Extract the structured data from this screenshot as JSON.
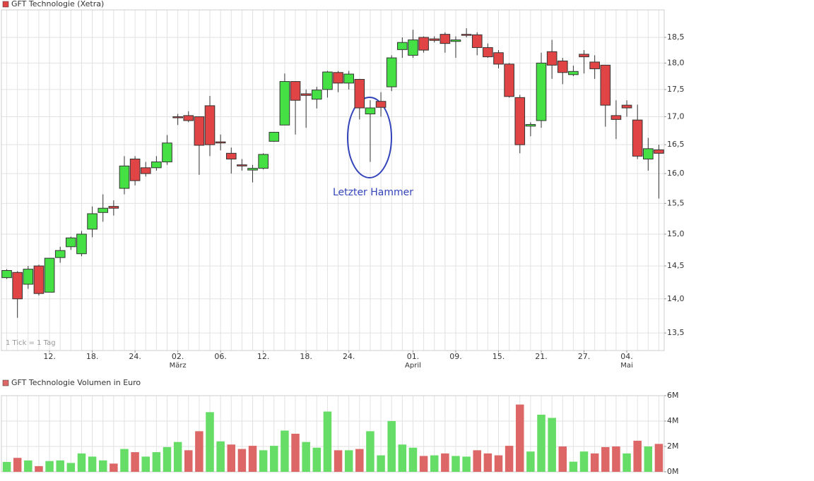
{
  "chart_data": [
    {
      "type": "candlestick",
      "legend": "GFT Technologie (Xetra)",
      "note": "1 Tick = 1 Tag",
      "annotation": "Letzter Hammer",
      "categories": [
        null,
        null,
        null,
        null,
        "12.",
        null,
        null,
        null,
        "18.",
        null,
        null,
        null,
        "24.",
        null,
        null,
        null,
        "02.",
        null,
        null,
        null,
        "06.",
        null,
        null,
        null,
        "12.",
        null,
        null,
        null,
        "18.",
        null,
        null,
        null,
        "24.",
        null,
        null,
        null,
        null,
        null,
        "01.",
        null,
        null,
        null,
        "09.",
        null,
        null,
        null,
        "15.",
        null,
        null,
        null,
        "21.",
        null,
        null,
        null,
        "27.",
        null,
        null,
        null,
        "04.",
        null,
        null,
        null
      ],
      "months": [
        null,
        null,
        null,
        null,
        null,
        null,
        null,
        null,
        null,
        null,
        null,
        null,
        null,
        null,
        null,
        null,
        "März",
        null,
        null,
        null,
        null,
        null,
        null,
        null,
        null,
        null,
        null,
        null,
        null,
        null,
        null,
        null,
        null,
        null,
        null,
        null,
        null,
        null,
        "April",
        null,
        null,
        null,
        null,
        null,
        null,
        null,
        null,
        null,
        null,
        null,
        null,
        null,
        null,
        null,
        null,
        null,
        null,
        null,
        "Mai",
        null,
        null,
        null
      ],
      "open": [
        14.32,
        14.4,
        14.22,
        14.5,
        14.1,
        14.63,
        14.8,
        14.69,
        15.08,
        15.35,
        15.45,
        15.75,
        16.25,
        16.1,
        16.1,
        16.2,
        17.0,
        17.02,
        17.0,
        17.2,
        16.55,
        16.35,
        16.15,
        16.06,
        16.09,
        16.56,
        16.85,
        17.65,
        17.42,
        17.32,
        17.5,
        17.82,
        17.62,
        17.69,
        17.05,
        17.28,
        17.55,
        18.26,
        18.15,
        18.5,
        18.47,
        18.56,
        18.42,
        18.56,
        18.55,
        18.3,
        18.2,
        17.98,
        17.35,
        16.83,
        16.93,
        18.22,
        18.04,
        17.78,
        18.17,
        18.02,
        17.96,
        17.02,
        17.21,
        16.94,
        16.25,
        16.41
      ],
      "high": [
        14.45,
        14.42,
        14.5,
        14.52,
        14.62,
        14.8,
        14.96,
        15.05,
        15.45,
        15.65,
        15.55,
        16.3,
        16.3,
        16.2,
        16.3,
        16.67,
        17.05,
        17.1,
        17.0,
        17.38,
        16.68,
        16.45,
        16.25,
        16.15,
        16.35,
        16.72,
        17.8,
        17.65,
        17.5,
        17.55,
        17.85,
        17.85,
        17.85,
        17.7,
        17.3,
        17.45,
        18.15,
        18.5,
        18.65,
        18.52,
        18.52,
        18.6,
        18.52,
        18.68,
        18.6,
        18.38,
        18.25,
        18.0,
        17.4,
        16.9,
        18.2,
        18.45,
        18.1,
        17.95,
        18.25,
        18.15,
        17.96,
        17.3,
        17.3,
        17.22,
        16.62,
        16.5
      ],
      "low": [
        14.3,
        13.72,
        14.15,
        14.05,
        14.1,
        14.55,
        14.75,
        14.65,
        14.95,
        15.2,
        15.3,
        15.65,
        15.8,
        15.95,
        16.05,
        16.15,
        16.85,
        16.9,
        15.98,
        16.3,
        16.4,
        16.0,
        16.05,
        15.85,
        16.07,
        16.55,
        16.85,
        16.68,
        16.8,
        17.15,
        17.35,
        17.45,
        17.5,
        16.95,
        16.2,
        17.0,
        17.47,
        18.1,
        18.1,
        18.2,
        18.4,
        18.2,
        18.1,
        18.5,
        18.15,
        18.1,
        17.9,
        17.35,
        16.35,
        16.65,
        16.8,
        17.7,
        17.6,
        17.75,
        17.8,
        17.7,
        16.82,
        16.6,
        17.0,
        16.25,
        16.05,
        15.58
      ],
      "close": [
        14.43,
        14.0,
        14.45,
        14.08,
        14.62,
        14.74,
        14.94,
        15.0,
        15.33,
        15.42,
        15.42,
        16.13,
        15.88,
        16.0,
        16.2,
        16.53,
        16.98,
        16.93,
        16.49,
        16.5,
        16.53,
        16.25,
        16.13,
        16.09,
        16.33,
        16.72,
        17.65,
        17.3,
        17.39,
        17.49,
        17.83,
        17.62,
        17.79,
        17.16,
        17.16,
        17.17,
        18.1,
        18.4,
        18.45,
        18.25,
        18.44,
        18.38,
        18.45,
        18.55,
        18.3,
        18.12,
        17.98,
        17.37,
        16.5,
        16.86,
        18.0,
        17.96,
        17.82,
        17.84,
        18.12,
        17.89,
        17.21,
        16.95,
        17.16,
        16.3,
        16.43,
        16.35
      ],
      "up_color": "#44e044",
      "down_color": "#e04444",
      "log": true,
      "grid": true,
      "ylim": [
        13.25,
        19.05
      ],
      "yticks": [
        {
          "value": 13.5,
          "label": "13,5"
        },
        {
          "value": 14,
          "label": "14,0"
        },
        {
          "value": 14.5,
          "label": "14,5"
        },
        {
          "value": 15,
          "label": "15,0"
        },
        {
          "value": 15.5,
          "label": "15,5"
        },
        {
          "value": 16,
          "label": "16,0"
        },
        {
          "value": 16.5,
          "label": "16,5"
        },
        {
          "value": 17,
          "label": "17,0"
        },
        {
          "value": 17.5,
          "label": "17,5"
        },
        {
          "value": 18,
          "label": "18,0"
        },
        {
          "value": 18.5,
          "label": "18,5"
        }
      ]
    },
    {
      "type": "bar",
      "legend": "GFT Technologie Volumen in Euro",
      "values": [
        780000,
        1100000,
        900000,
        450000,
        850000,
        900000,
        700000,
        1450000,
        1200000,
        900000,
        650000,
        1800000,
        1550000,
        1200000,
        1550000,
        1950000,
        2350000,
        1700000,
        3200000,
        4700000,
        2400000,
        2150000,
        1800000,
        2050000,
        1700000,
        2050000,
        3250000,
        3000000,
        2350000,
        1900000,
        4750000,
        1700000,
        1700000,
        1800000,
        3200000,
        1300000,
        4000000,
        2150000,
        1900000,
        1250000,
        1300000,
        1450000,
        1250000,
        1200000,
        1700000,
        1450000,
        1300000,
        2050000,
        5300000,
        1600000,
        4500000,
        4250000,
        2000000,
        800000,
        1600000,
        1450000,
        1950000,
        2000000,
        1450000,
        2450000,
        2000000,
        2200000
      ],
      "colors": [
        "#66dd66",
        "#dd6666",
        "#66dd66",
        "#dd6666",
        "#66dd66",
        "#66dd66",
        "#66dd66",
        "#66dd66",
        "#66dd66",
        "#66dd66",
        "#dd6666",
        "#66dd66",
        "#dd6666",
        "#66dd66",
        "#66dd66",
        "#66dd66",
        "#66dd66",
        "#dd6666",
        "#dd6666",
        "#66dd66",
        "#66dd66",
        "#dd6666",
        "#dd6666",
        "#dd6666",
        "#66dd66",
        "#66dd66",
        "#66dd66",
        "#dd6666",
        "#66dd66",
        "#66dd66",
        "#66dd66",
        "#dd6666",
        "#66dd66",
        "#dd6666",
        "#66dd66",
        "#66dd66",
        "#66dd66",
        "#66dd66",
        "#66dd66",
        "#dd6666",
        "#66dd66",
        "#dd6666",
        "#66dd66",
        "#66dd66",
        "#dd6666",
        "#dd6666",
        "#dd6666",
        "#dd6666",
        "#dd6666",
        "#66dd66",
        "#66dd66",
        "#66dd66",
        "#dd6666",
        "#66dd66",
        "#66dd66",
        "#dd6666",
        "#dd6666",
        "#dd6666",
        "#66dd66",
        "#dd6666",
        "#66dd66",
        "#dd6666"
      ],
      "legend_color": "#dd6666",
      "grid": true,
      "ylim": [
        0,
        6000000
      ],
      "yticks": [
        {
          "value": 0,
          "label": "0M"
        },
        {
          "value": 2000000,
          "label": "2M"
        },
        {
          "value": 4000000,
          "label": "4M"
        },
        {
          "value": 6000000,
          "label": "6M"
        }
      ]
    }
  ]
}
